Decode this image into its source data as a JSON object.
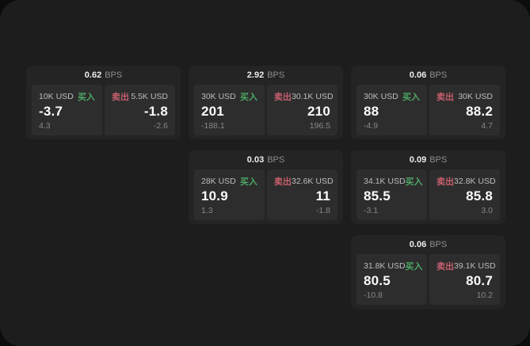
{
  "labels": {
    "bps_unit": "BPS",
    "buy": "买入",
    "sell": "卖出"
  },
  "colors": {
    "page_bg": "#0c0c0c",
    "panel_bg": "#1d1d1d",
    "card_bg": "#242424",
    "tile_bg": "#2d2d2d",
    "buy_accent": "#4ea765",
    "sell_accent": "#c75f6d",
    "value_text": "#fafafa",
    "muted_text": "#878787"
  },
  "cards": [
    {
      "bps": "0.62",
      "buy": {
        "amount": "10K USD",
        "value": "-3.7",
        "change": "4.3"
      },
      "sell": {
        "amount": "5.5K USD",
        "value": "-1.8",
        "change": "-2.6"
      }
    },
    {
      "bps": "2.92",
      "buy": {
        "amount": "30K USD",
        "value": "201",
        "change": "-188.1"
      },
      "sell": {
        "amount": "30.1K USD",
        "value": "210",
        "change": "196.5"
      }
    },
    {
      "bps": "0.06",
      "buy": {
        "amount": "30K USD",
        "value": "88",
        "change": "-4.9"
      },
      "sell": {
        "amount": "30K USD",
        "value": "88.2",
        "change": "4.7"
      }
    },
    {
      "bps": "0.03",
      "buy": {
        "amount": "28K USD",
        "value": "10.9",
        "change": "1.3"
      },
      "sell": {
        "amount": "32.6K USD",
        "value": "11",
        "change": "-1.8"
      }
    },
    {
      "bps": "0.09",
      "buy": {
        "amount": "34.1K USD",
        "value": "85.5",
        "change": "-3.1"
      },
      "sell": {
        "amount": "32.8K USD",
        "value": "85.8",
        "change": "3.0"
      }
    },
    {
      "bps": "0.06",
      "buy": {
        "amount": "31.8K USD",
        "value": "80.5",
        "change": "-10.8"
      },
      "sell": {
        "amount": "39.1K USD",
        "value": "80.7",
        "change": "10.2"
      }
    }
  ]
}
